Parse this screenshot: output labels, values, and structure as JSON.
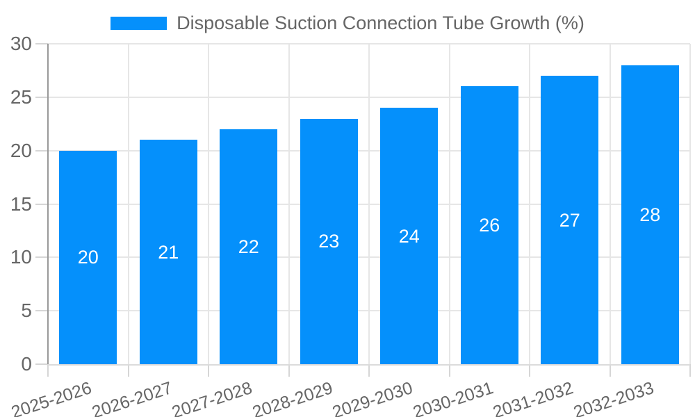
{
  "chart_data": {
    "type": "bar",
    "title": "",
    "legend_label": "Disposable Suction Connection Tube Growth (%)",
    "legend_position": "top",
    "categories": [
      "2025-2026",
      "2026-2027",
      "2027-2028",
      "2028-2029",
      "2029-2030",
      "2030-2031",
      "2031-2032",
      "2032-2033"
    ],
    "values": [
      20,
      21,
      22,
      23,
      24,
      26,
      27,
      28
    ],
    "xlabel": "",
    "ylabel": "",
    "ylim": [
      0,
      30
    ],
    "yticks": [
      0,
      5,
      10,
      15,
      20,
      25,
      30
    ],
    "grid": true,
    "value_labels_position": "inside-center",
    "x_label_rotation_deg": -18,
    "colors": {
      "bar": "#0590FB",
      "value_label": "#FFFFFF",
      "axis_text": "#666666",
      "grid": "#E6E6E6",
      "tick": "#D6D6D6",
      "y_axis_line": "#999999",
      "x_axis_line": "#DBDBDB",
      "background": "#FFFFFF"
    }
  }
}
